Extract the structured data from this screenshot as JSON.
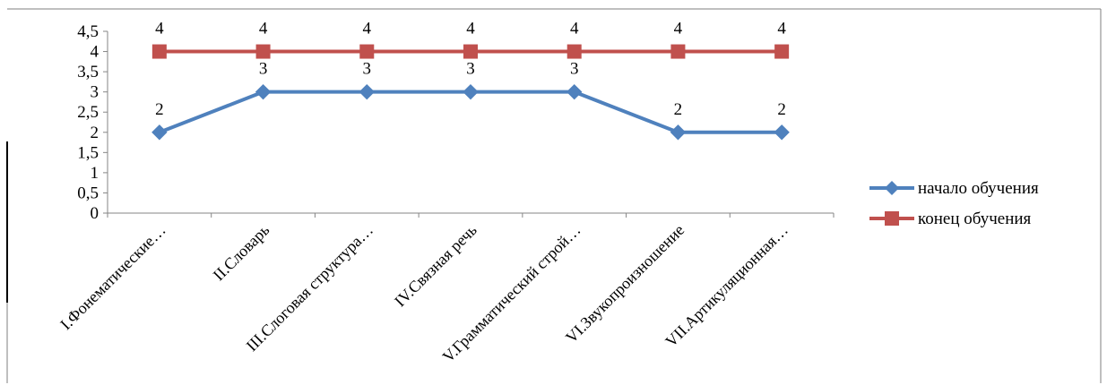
{
  "chart_data": {
    "type": "line",
    "title": "",
    "xlabel": "",
    "ylabel": "",
    "categories": [
      "I.Фонематические…",
      "II.Словарь",
      "III.Слоговая структура…",
      "IV.Связная речь",
      "V.Грамматический строй…",
      "VI.Звукопроизношение",
      "VII.Артикуляционная…"
    ],
    "y_ticks": [
      "0",
      "0,5",
      "1",
      "1,5",
      "2",
      "2,5",
      "3",
      "3,5",
      "4",
      "4,5"
    ],
    "ylim": [
      0,
      4.5
    ],
    "grid": false,
    "legend_position": "right",
    "series": [
      {
        "name": "начало обучения",
        "values": [
          2,
          3,
          3,
          3,
          3,
          2,
          2
        ],
        "data_labels": [
          "2",
          "3",
          "3",
          "3",
          "3",
          "2",
          "2"
        ],
        "color": "#4F81BD",
        "marker": "diamond"
      },
      {
        "name": "конец обучения",
        "values": [
          4,
          4,
          4,
          4,
          4,
          4,
          4
        ],
        "data_labels": [
          "4",
          "4",
          "4",
          "4",
          "4",
          "4",
          "4"
        ],
        "color": "#C0504D",
        "marker": "square"
      }
    ]
  }
}
